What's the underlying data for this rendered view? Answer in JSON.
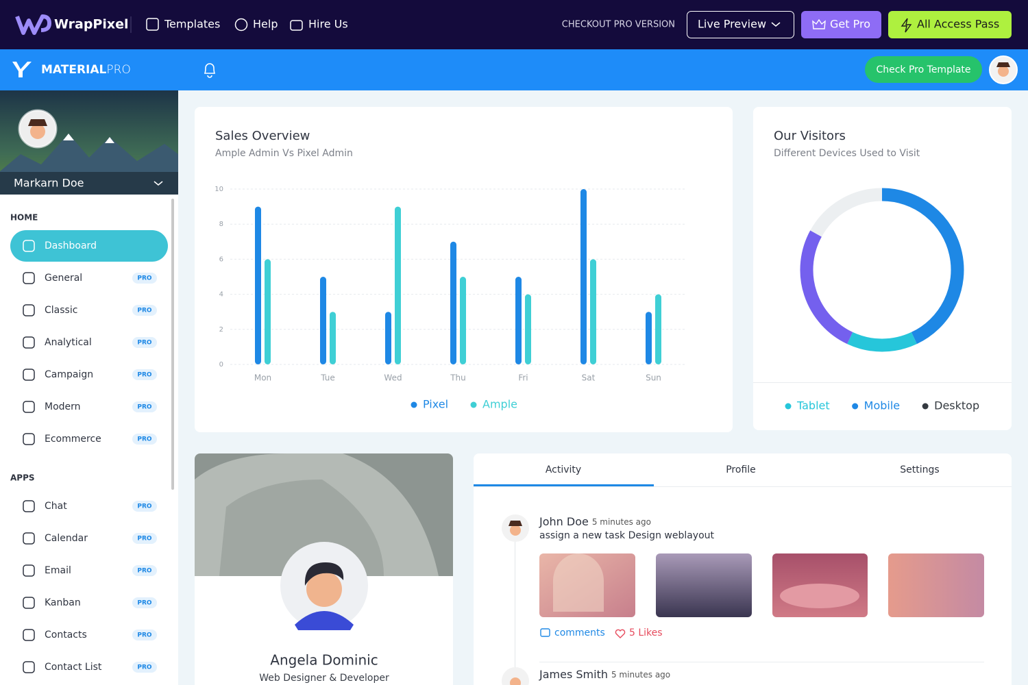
{
  "topbar": {
    "brand": "WrapPixel",
    "nav": [
      "Templates",
      "Help",
      "Hire Us"
    ],
    "promo": "CHECKOUT PRO VERSION",
    "buttons": [
      "Live Preview",
      "Get Pro",
      "All Access Pass"
    ]
  },
  "header": {
    "brand_bold": "MATERIAL",
    "brand_light": "PRO",
    "button": "Check Pro Template"
  },
  "sidebar": {
    "user": "Markarn Doe",
    "sections": [
      {
        "title": "HOME",
        "items": [
          {
            "label": "Dashboard",
            "active": true
          },
          {
            "label": "General",
            "badge": "PRO"
          },
          {
            "label": "Classic",
            "badge": "PRO"
          },
          {
            "label": "Analytical",
            "badge": "PRO"
          },
          {
            "label": "Campaign",
            "badge": "PRO"
          },
          {
            "label": "Modern",
            "badge": "PRO"
          },
          {
            "label": "Ecommerce",
            "badge": "PRO"
          }
        ]
      },
      {
        "title": "APPS",
        "items": [
          {
            "label": "Chat",
            "badge": "PRO"
          },
          {
            "label": "Calendar",
            "badge": "PRO"
          },
          {
            "label": "Email",
            "badge": "PRO"
          },
          {
            "label": "Kanban",
            "badge": "PRO"
          },
          {
            "label": "Contacts",
            "badge": "PRO"
          },
          {
            "label": "Contact List",
            "badge": "PRO"
          }
        ]
      }
    ]
  },
  "chart_data": [
    {
      "type": "bar",
      "title": "Sales Overview",
      "subtitle": "Ample Admin Vs Pixel Admin",
      "categories": [
        "Mon",
        "Tue",
        "Wed",
        "Thu",
        "Fri",
        "Sat",
        "Sun"
      ],
      "series": [
        {
          "name": "Pixel",
          "color": "#1e88e5",
          "values": [
            9,
            5,
            3,
            7,
            5,
            10,
            3
          ]
        },
        {
          "name": "Ample",
          "color": "#3fcfd5",
          "values": [
            6,
            3,
            9,
            5,
            4,
            6,
            4
          ]
        }
      ],
      "ylim": [
        0,
        10
      ],
      "yticks": [
        0,
        2,
        4,
        6,
        8,
        10
      ],
      "grid": true
    },
    {
      "type": "donut",
      "title": "Our Visitors",
      "subtitle": "Different Devices Used to Visit",
      "values": [
        43,
        14,
        26,
        17
      ],
      "colors": [
        "#1e88e5",
        "#26c6da",
        "#7460ee",
        "#eceff1"
      ],
      "legend": [
        {
          "name": "Tablet",
          "color": "#26c6da"
        },
        {
          "name": "Mobile",
          "color": "#1e88e5"
        },
        {
          "name": "Desktop",
          "color": "#343a40"
        }
      ]
    }
  ],
  "profile_card": {
    "name": "Angela Dominic",
    "role": "Web Designer & Developer"
  },
  "activity": {
    "tabs": [
      "Activity",
      "Profile",
      "Settings"
    ],
    "feed": [
      {
        "name": "John Doe",
        "time": "5 minutes ago",
        "text": "assign a new task Design weblayout",
        "comments": "comments",
        "likes": "5 Likes"
      },
      {
        "name": "James Smith",
        "time": "5 minutes ago"
      }
    ]
  }
}
